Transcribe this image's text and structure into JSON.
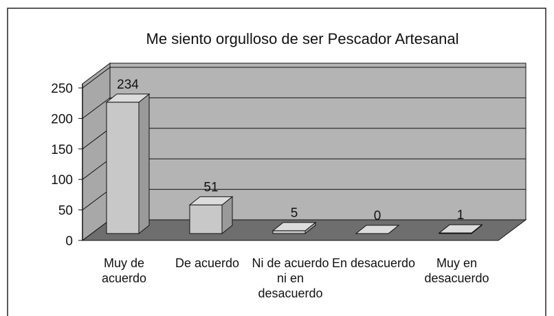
{
  "chart_data": {
    "type": "bar3d",
    "title": "Me siento orgulloso de ser Pescador Artesanal",
    "categories": [
      "Muy de acuerdo",
      "De acuerdo",
      "Ni de acuerdo ni en desacuerdo",
      "En desacuerdo",
      "Muy en desacuerdo"
    ],
    "values": [
      234,
      51,
      5,
      0,
      1
    ],
    "color": "#c8c8c8",
    "ylim": [
      0,
      250
    ],
    "yticks": [
      0,
      50,
      100,
      150,
      200,
      250
    ],
    "grid": true
  }
}
